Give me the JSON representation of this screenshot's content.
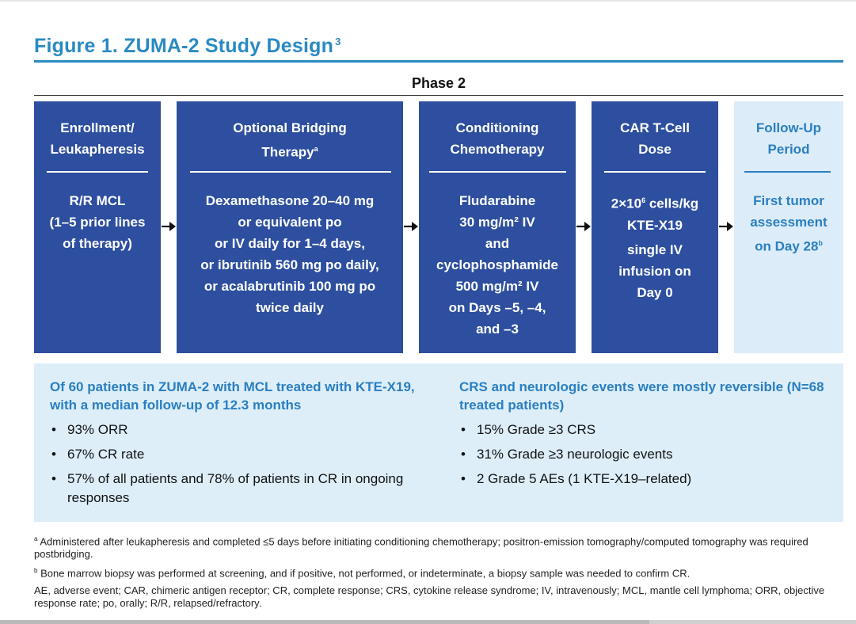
{
  "figure": {
    "title": "Figure 1. ZUMA-2 Study Design",
    "title_ref": "3",
    "phase": "Phase 2"
  },
  "steps": [
    {
      "head": [
        "Enrollment/",
        "Leukapheresis"
      ],
      "body": [
        "R/R MCL",
        "(1–5 prior lines",
        "of therapy)"
      ]
    },
    {
      "head": [
        "Optional Bridging",
        "Therapy"
      ],
      "head_sup": "a",
      "body": [
        "Dexamethasone 20–40 mg",
        "or equivalent po",
        "or IV daily for 1–4 days,",
        "or ibrutinib 560 mg po daily,",
        "or acalabrutinib 100 mg po",
        "twice daily"
      ]
    },
    {
      "head": [
        "Conditioning",
        "Chemotherapy"
      ],
      "body": [
        "Fludarabine",
        "30 mg/m² IV",
        "and",
        "cyclophosphamide",
        "500 mg/m² IV",
        "on Days –5, –4,",
        "and –3"
      ]
    },
    {
      "head": [
        "CAR T-Cell",
        "Dose"
      ],
      "body_first_pre": "2×10",
      "body_first_sup": "6",
      "body_first_post": " cells/kg",
      "body": [
        "KTE-X19",
        "single IV",
        "infusion on",
        "Day 0"
      ]
    },
    {
      "head": [
        "Follow-Up",
        "Period"
      ],
      "body": [
        "First tumor",
        "assessment"
      ],
      "body_last": "on Day 28",
      "body_last_sup": "b"
    }
  ],
  "summary": {
    "left": {
      "heading": "Of 60 patients in ZUMA-2 with MCL treated with KTE-X19, with a median follow-up of 12.3 months",
      "items": [
        "93% ORR",
        "67% CR rate",
        "57% of all patients and 78% of patients in CR in ongoing responses"
      ]
    },
    "right": {
      "heading": "CRS and neurologic events were mostly reversible (N=68 treated patients)",
      "items": [
        "15% Grade ≥3 CRS",
        "31% Grade ≥3 neurologic events",
        "2 Grade 5 AEs (1 KTE-X19–related)"
      ]
    }
  },
  "footnotes": {
    "a_mark": "a",
    "a_text": "Administered after leukapheresis and completed ≤5 days before initiating conditioning chemotherapy; positron-emission tomography/computed tomography was required postbridging.",
    "b_mark": "b",
    "b_text": "Bone marrow biopsy was performed at screening, and if positive, not performed, or indeterminate, a biopsy sample was needed to confirm CR.",
    "abbreviations": "AE, adverse event; CAR, chimeric antigen receptor; CR, complete response; CRS, cytokine release syndrome; IV, intravenously; MCL, mantle cell lymphoma; ORR, objective response rate; po, orally; R/R, relapsed/refractory."
  },
  "colors": {
    "title_blue": "#2a8ac2",
    "box_dark": "#2e4f9f",
    "box_light": "#dcecf8",
    "summary_bg": "#ddeef9"
  },
  "icons": [
    "arrow-right-icon"
  ]
}
